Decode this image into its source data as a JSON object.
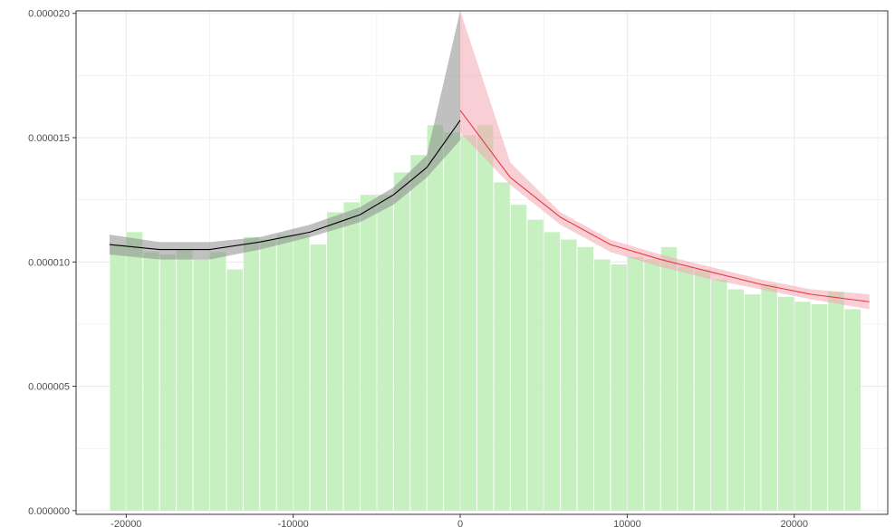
{
  "chart_data": {
    "type": "bar",
    "title": "",
    "xlabel": "",
    "ylabel": "",
    "xlim": [
      -23000,
      25600
    ],
    "ylim": [
      -1.5e-07,
      2.01e-05
    ],
    "x_ticks": [
      -20000,
      -10000,
      0,
      10000,
      20000
    ],
    "x_tick_labels": [
      "-20000",
      "-10000",
      "0",
      "10000",
      "20000"
    ],
    "y_ticks": [
      0,
      5e-06,
      1e-05,
      1.5e-05,
      2e-05
    ],
    "y_tick_labels": [
      "0.000000",
      "0.000005",
      "0.000010",
      "0.000015",
      "0.000020"
    ],
    "grid": true,
    "legend": "none",
    "colors": {
      "bars": "#c6f0c0",
      "left_line": "#000000",
      "left_band": "#8c8c8c",
      "right_line": "#e8383f",
      "right_band": "#f4a7b4",
      "grid": "#ebebeb",
      "border": "#333333"
    },
    "histogram": {
      "bin_width": 1000,
      "bins_x": [
        -20500,
        -19500,
        -18500,
        -17500,
        -16500,
        -15500,
        -14500,
        -13500,
        -12500,
        -11500,
        -10500,
        -9500,
        -8500,
        -7500,
        -6500,
        -5500,
        -4500,
        -3500,
        -2500,
        -1500,
        -500,
        500,
        1500,
        2500,
        3500,
        4500,
        5500,
        6500,
        7500,
        8500,
        9500,
        10500,
        11500,
        12500,
        13500,
        14500,
        15500,
        16500,
        17500,
        18500,
        19500,
        20500,
        21500,
        22500,
        23500
      ],
      "values": [
        1.07e-05,
        1.12e-05,
        1.04e-05,
        1.03e-05,
        1.05e-05,
        1.01e-05,
        1.04e-05,
        9.7e-06,
        1.1e-05,
        1.09e-05,
        1.11e-05,
        1.11e-05,
        1.07e-05,
        1.2e-05,
        1.24e-05,
        1.27e-05,
        1.27e-05,
        1.36e-05,
        1.43e-05,
        1.55e-05,
        1.52e-05,
        1.51e-05,
        1.55e-05,
        1.32e-05,
        1.23e-05,
        1.17e-05,
        1.12e-05,
        1.09e-05,
        1.06e-05,
        1.01e-05,
        9.9e-06,
        1.02e-05,
        1.01e-05,
        1.06e-05,
        9.8e-06,
        9.7e-06,
        9.3e-06,
        8.9e-06,
        8.7e-06,
        9.1e-06,
        8.6e-06,
        8.4e-06,
        8.3e-06,
        8.8e-06,
        8.1e-06
      ]
    },
    "series": [
      {
        "x": [
          -21000,
          -18000,
          -15000,
          -12000,
          -9000,
          -6000,
          -4000,
          -2000,
          0
        ],
        "y": [
          1.07e-05,
          1.05e-05,
          1.05e-05,
          1.08e-05,
          1.12e-05,
          1.19e-05,
          1.27e-05,
          1.38e-05,
          1.57e-05
        ],
        "ci_lower": [
          1.03e-05,
          1.01e-05,
          1.01e-05,
          1.05e-05,
          1.1e-05,
          1.16e-05,
          1.23e-05,
          1.34e-05,
          1.49e-05
        ],
        "ci_upper": [
          1.11e-05,
          1.08e-05,
          1.08e-05,
          1.1e-05,
          1.15e-05,
          1.22e-05,
          1.3e-05,
          1.43e-05,
          2.01e-05
        ]
      },
      {
        "x": [
          0,
          3000,
          6000,
          9000,
          12000,
          15000,
          18000,
          21000,
          24500
        ],
        "y": [
          1.61e-05,
          1.34e-05,
          1.18e-05,
          1.07e-05,
          1.01e-05,
          9.6e-06,
          9.1e-06,
          8.7e-06,
          8.4e-06
        ],
        "ci_lower": [
          1.52e-05,
          1.31e-05,
          1.15e-05,
          1.04e-05,
          9.8e-06,
          9.3e-06,
          8.9e-06,
          8.5e-06,
          8.1e-06
        ],
        "ci_upper": [
          2.01e-05,
          1.4e-05,
          1.2e-05,
          1.09e-05,
          1.03e-05,
          9.8e-06,
          9.3e-06,
          8.9e-06,
          8.7e-06
        ]
      }
    ]
  }
}
